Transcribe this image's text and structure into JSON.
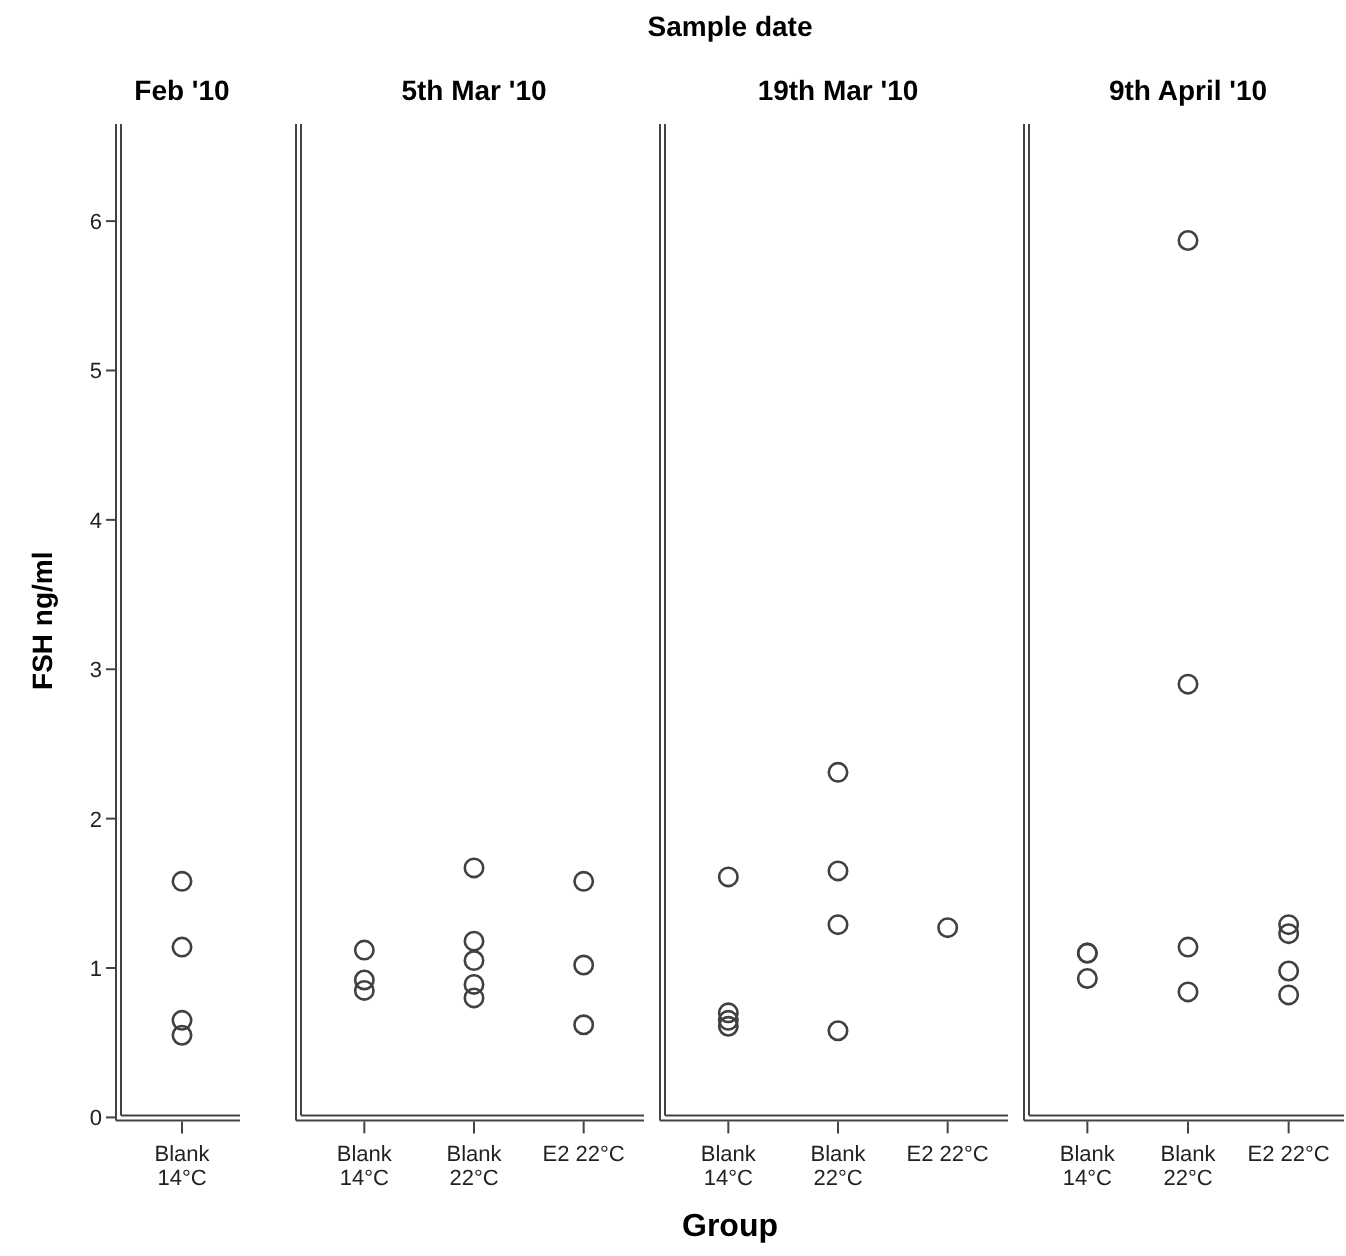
{
  "chart_data": [
    {
      "type": "scatter",
      "title": "Feb '10",
      "ylabel": "FSH ng/ml",
      "categories": [
        "Blank\n14°C"
      ],
      "ylim": [
        0,
        6.65
      ],
      "yticks": [
        0,
        1,
        2,
        3,
        4,
        5,
        6
      ],
      "marker": "circle",
      "grid": false,
      "series": [
        {
          "color": "#404040",
          "x": [
            "Blank\n14°C",
            "Blank\n14°C",
            "Blank\n14°C",
            "Blank\n14°C"
          ],
          "values": [
            1.58,
            1.14,
            0.65,
            0.55
          ]
        }
      ]
    },
    {
      "type": "scatter",
      "title": "5th Mar '10",
      "categories": [
        "Blank\n14°C",
        "Blank\n22°C",
        "E2 22°C"
      ],
      "ylim": [
        0,
        6.65
      ],
      "tick_labels": "x",
      "marker": "circle",
      "grid": false,
      "series": [
        {
          "color": "#404040",
          "x": [
            "Blank\n14°C",
            "Blank\n14°C",
            "Blank\n14°C",
            "Blank\n22°C",
            "Blank\n22°C",
            "Blank\n22°C",
            "Blank\n22°C",
            "Blank\n22°C",
            "E2 22°C",
            "E2 22°C",
            "E2 22°C"
          ],
          "values": [
            1.12,
            0.92,
            0.85,
            1.67,
            1.18,
            1.05,
            0.89,
            0.8,
            1.58,
            1.02,
            0.62
          ]
        }
      ]
    },
    {
      "type": "scatter",
      "title": "19th Mar '10",
      "xlabel": "Group",
      "annotations": [
        "Sample date"
      ],
      "categories": [
        "Blank\n14°C",
        "Blank\n22°C",
        "E2 22°C"
      ],
      "ylim": [
        0,
        6.65
      ],
      "tick_labels": "x",
      "marker": "circle",
      "grid": false,
      "series": [
        {
          "color": "#404040",
          "x": [
            "Blank\n14°C",
            "Blank\n14°C",
            "Blank\n14°C",
            "Blank\n14°C",
            "Blank\n22°C",
            "Blank\n22°C",
            "Blank\n22°C",
            "Blank\n22°C",
            "E2 22°C"
          ],
          "values": [
            1.61,
            0.7,
            0.65,
            0.61,
            2.31,
            1.65,
            1.29,
            0.58,
            1.27
          ]
        }
      ]
    },
    {
      "type": "scatter",
      "title": "9th April '10",
      "categories": [
        "Blank\n14°C",
        "Blank\n22°C",
        "E2 22°C"
      ],
      "ylim": [
        0,
        6.65
      ],
      "tick_labels": "x",
      "marker": "circle",
      "grid": false,
      "series": [
        {
          "color": "#404040",
          "x": [
            "Blank\n14°C",
            "Blank\n14°C",
            "Blank\n14°C",
            "Blank\n22°C",
            "Blank\n22°C",
            "Blank\n22°C",
            "Blank\n22°C",
            "E2 22°C",
            "E2 22°C",
            "E2 22°C",
            "E2 22°C"
          ],
          "values": [
            1.1,
            1.1,
            0.93,
            5.87,
            2.9,
            1.14,
            0.84,
            1.29,
            1.23,
            0.98,
            0.82
          ]
        }
      ]
    }
  ]
}
